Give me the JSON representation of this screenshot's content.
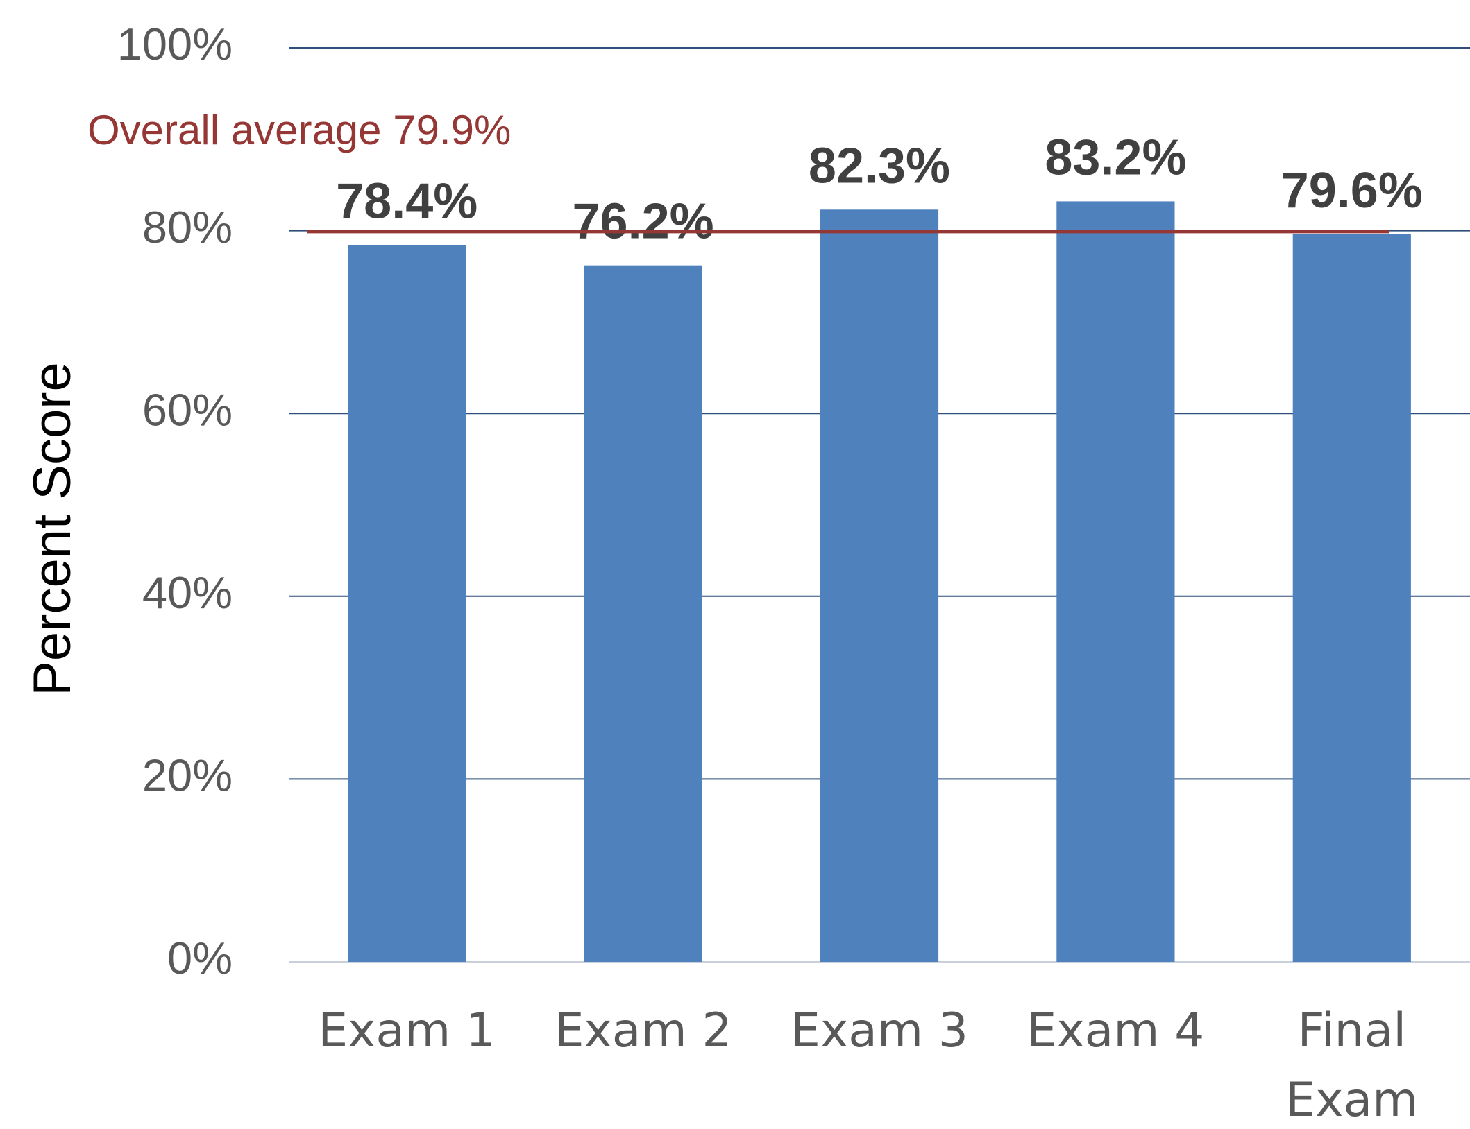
{
  "chart_data": {
    "type": "bar",
    "y_axis_label": "Percent Score",
    "categories": [
      "Exam 1",
      "Exam 2",
      "Exam 3",
      "Exam 4",
      "Final Exam"
    ],
    "values": [
      78.4,
      76.2,
      82.3,
      83.2,
      79.6
    ],
    "value_labels": [
      "78.4%",
      "76.2%",
      "82.3%",
      "83.2%",
      "79.6%"
    ],
    "color": "#4f81bd",
    "ylim": [
      0,
      100
    ],
    "yticks": [
      {
        "value": 0,
        "label": "0%"
      },
      {
        "value": 20,
        "label": "20%"
      },
      {
        "value": 40,
        "label": "40%"
      },
      {
        "value": 60,
        "label": "60%"
      },
      {
        "value": 80,
        "label": "80%"
      },
      {
        "value": 100,
        "label": "100%"
      }
    ],
    "grid": true,
    "reference_line": {
      "label": "Overall average 79.9%",
      "value": 79.9,
      "color": "#953735"
    }
  }
}
